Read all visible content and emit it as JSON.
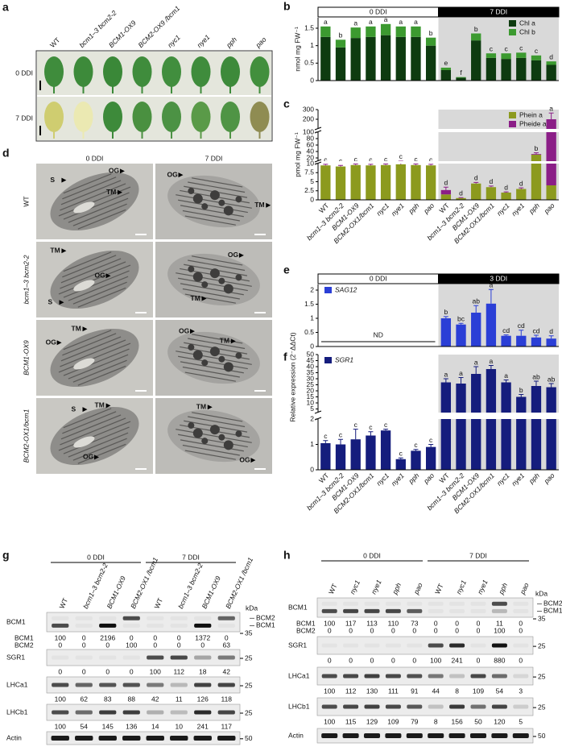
{
  "panel_labels": [
    "a",
    "b",
    "c",
    "d",
    "e",
    "f",
    "g",
    "h"
  ],
  "leaves": {
    "genotypes": [
      "WT",
      "bcm1–3 bcm2-2",
      "BCM1-OX9",
      "BCM2-OX9 /bcm1",
      "nyc1",
      "nye1",
      "pph",
      "pao"
    ],
    "rows": [
      "0 DDI",
      "7 DDI"
    ]
  },
  "micrographs": {
    "columns": [
      "0 DDI",
      "7 DDI"
    ],
    "rows": [
      "WT",
      "bcm1–3 bcm2-2",
      "BCM1-OX9",
      "BCM2-OX1/bcm1"
    ],
    "annotations": [
      [
        [
          "OG",
          "S",
          "TM"
        ],
        [
          "OG",
          "TM"
        ]
      ],
      [
        [
          "TM",
          "OG",
          "S"
        ],
        [
          "OG",
          "TM"
        ]
      ],
      [
        [
          "OG",
          "TM"
        ],
        [
          "OG",
          "TM"
        ]
      ],
      [
        [
          "S",
          "TM",
          "OG"
        ],
        [
          "TM",
          "OG"
        ]
      ]
    ]
  },
  "chart_data": [
    {
      "type": "stacked_bar",
      "periods": [
        "0 DDI",
        "7 DDI"
      ],
      "ylabel": "nmol mg FW⁻¹",
      "ylim": [
        0,
        1.8
      ],
      "yticks": [
        0,
        0.5,
        1,
        1.5
      ],
      "legend": "upper right",
      "series": [
        {
          "name": "Chl a",
          "color": "#0e3b10",
          "values": [
            1.25,
            0.95,
            1.22,
            1.25,
            1.3,
            1.25,
            1.25,
            1.0,
            0.3,
            0.08,
            1.15,
            0.65,
            0.62,
            0.65,
            0.58,
            0.45
          ]
        },
        {
          "name": "Chl b",
          "color": "#3c9a30",
          "values": [
            0.3,
            0.22,
            0.3,
            0.3,
            0.32,
            0.3,
            0.3,
            0.23,
            0.07,
            0.02,
            0.2,
            0.13,
            0.16,
            0.15,
            0.14,
            0.1
          ]
        }
      ],
      "letters": [
        "a",
        "b",
        "a",
        "a",
        "a",
        "a",
        "a",
        "b",
        "e",
        "f",
        "b",
        "c",
        "c",
        "c",
        "c",
        "d"
      ]
    },
    {
      "type": "stacked_bar",
      "ylabel": "pmol mg FW⁻¹",
      "ylim": [
        0,
        300
      ],
      "ysegments": [
        [
          0,
          10
        ],
        [
          10,
          100
        ],
        [
          100,
          300
        ]
      ],
      "yticks": [
        0,
        2.5,
        5,
        7.5,
        10,
        20,
        40,
        60,
        80,
        100,
        200,
        300
      ],
      "legend": "upper right",
      "categories": [
        "WT",
        "bcm1–3 bcm2-2",
        "BCM1-OX9",
        "BCM2-OX1/bcm1",
        "nyc1",
        "nye1",
        "pph",
        "pao",
        "WT",
        "bcm1–3 bcm2-2",
        "BCM1-OX9",
        "BCM2-OX1/bcm1",
        "nyc1",
        "nye1",
        "pph",
        "pao"
      ],
      "series": [
        {
          "name": "Phein a",
          "color": "#8c9a1e",
          "values": [
            9.5,
            9.2,
            9.6,
            9.5,
            9.6,
            9.8,
            9.6,
            9.5,
            1.5,
            0.5,
            4.5,
            3.5,
            2.0,
            3.0,
            30,
            4
          ]
        },
        {
          "name": "Pheide a",
          "color": "#8b1e87",
          "values": [
            0,
            0,
            0,
            0,
            0,
            0,
            0,
            0,
            1.2,
            0,
            0,
            0,
            0,
            0,
            2,
            196
          ]
        }
      ],
      "errors": [
        0.3,
        0.3,
        0.3,
        0.3,
        0.3,
        0.3,
        0.3,
        0.3,
        0.8,
        0.1,
        0.3,
        0.3,
        0.2,
        0.3,
        4,
        65
      ],
      "letters": [
        "c",
        "c",
        "c",
        "c",
        "c",
        "c",
        "c",
        "c",
        "d",
        "d",
        "d",
        "d",
        "d",
        "d",
        "b",
        "a"
      ]
    },
    {
      "type": "bar",
      "periods": [
        "0 DDI",
        "3 DDI"
      ],
      "ylabel": "Relative expression (2⁻ΔΔCt)",
      "annotation": "ND",
      "ylim": [
        0,
        2.2
      ],
      "yticks": [
        0,
        0.5,
        1,
        1.5,
        2
      ],
      "legend": "upper left",
      "series": [
        {
          "name": "SAG12",
          "color": "#2b3fd6",
          "values": [
            null,
            null,
            null,
            null,
            null,
            null,
            null,
            null,
            1.0,
            0.78,
            1.2,
            1.52,
            0.38,
            0.38,
            0.32,
            0.28
          ]
        }
      ],
      "errors": [
        null,
        null,
        null,
        null,
        null,
        null,
        null,
        null,
        0.06,
        0.04,
        0.25,
        0.5,
        0.03,
        0.2,
        0.08,
        0.1
      ],
      "letters": [
        null,
        null,
        null,
        null,
        null,
        null,
        null,
        null,
        "b",
        "bc",
        "ab",
        "a",
        "cd",
        "cd",
        "cd",
        "d"
      ]
    },
    {
      "type": "bar",
      "ylim": [
        0,
        50
      ],
      "ysegments": [
        [
          0,
          2
        ],
        [
          2,
          50
        ]
      ],
      "yticks": [
        0,
        1,
        2,
        5,
        10,
        15,
        20,
        25,
        30,
        35,
        40,
        45,
        50
      ],
      "legend": "upper left",
      "categories": [
        "WT",
        "bcm1–3 bcm2-2",
        "BCM1-OX9",
        "BCM2-OX1/bcm1",
        "nyc1",
        "nye1",
        "pph",
        "pao",
        "WT",
        "bcm1–3 bcm2-2",
        "BCM1-OX9",
        "BCM2-OX1/bcm1",
        "nyc1",
        "nye1",
        "pph",
        "pao"
      ],
      "series": [
        {
          "name": "SGR1",
          "color": "#151d7d",
          "values": [
            1.05,
            1.0,
            1.2,
            1.35,
            1.55,
            0.42,
            0.75,
            0.9,
            27,
            26,
            34,
            38,
            27,
            15,
            24,
            23
          ]
        }
      ],
      "errors": [
        0.1,
        0.2,
        0.4,
        0.15,
        0.05,
        0.05,
        0.05,
        0.1,
        3,
        5,
        6,
        3,
        2,
        2,
        4,
        3
      ],
      "letters": [
        "c",
        "c",
        "c",
        "c",
        "c",
        "c",
        "c",
        "c",
        "a",
        "a",
        "a",
        "a",
        "a",
        "b",
        "ab",
        "ab"
      ]
    }
  ],
  "blots": [
    {
      "header": [
        "0 DDI",
        "7 DDI"
      ],
      "kda_label": "kDa",
      "lanes": [
        "WT",
        "bcm1–3 bcm2-2",
        "BCM1-OX9",
        "BCM2-OX1 /bcm1",
        "WT",
        "bcm1–3 bcm2-2",
        "BCM1-OX9",
        "BCM2-OX1 /bcm1"
      ],
      "rows": [
        {
          "name": "BCM1",
          "bands": [
            "BCM2",
            "BCM1"
          ],
          "kda": [
            35
          ],
          "quant": [
            {
              "name": "BCM1",
              "values": [
                100,
                0,
                2196,
                0,
                0,
                0,
                1372,
                0
              ]
            },
            {
              "name": "BCM2",
              "values": [
                0,
                0,
                0,
                100,
                0,
                0,
                0,
                63
              ]
            }
          ]
        },
        {
          "name": "SGR1",
          "kda": [
            25
          ],
          "quant": [
            {
              "values": [
                0,
                0,
                0,
                0,
                100,
                112,
                18,
                42
              ]
            }
          ]
        },
        {
          "name": "LHCa1",
          "kda": [
            25
          ],
          "quant": [
            {
              "values": [
                100,
                62,
                83,
                88,
                42,
                11,
                126,
                118
              ]
            }
          ]
        },
        {
          "name": "LHCb1",
          "kda": [
            25
          ],
          "quant": [
            {
              "values": [
                100,
                54,
                145,
                136,
                14,
                10,
                241,
                117
              ]
            }
          ]
        },
        {
          "name": "Actin",
          "kda": [
            50
          ]
        }
      ]
    },
    {
      "header": [
        "0 DDI",
        "7 DDI"
      ],
      "kda_label": "kDa",
      "lanes": [
        "WT",
        "nyc1",
        "nye1",
        "pph",
        "pao",
        "WT",
        "nyc1",
        "nye1",
        "pph",
        "pao"
      ],
      "rows": [
        {
          "name": "BCM1",
          "bands": [
            "BCM2",
            "BCM1"
          ],
          "kda": [
            35
          ],
          "quant": [
            {
              "name": "BCM1",
              "values": [
                100,
                117,
                113,
                110,
                73,
                0,
                0,
                0,
                11,
                0
              ]
            },
            {
              "name": "BCM2",
              "values": [
                0,
                0,
                0,
                0,
                0,
                0,
                0,
                0,
                100,
                0
              ]
            }
          ]
        },
        {
          "name": "SGR1",
          "kda": [
            25
          ],
          "quant": [
            {
              "values": [
                0,
                0,
                0,
                0,
                0,
                100,
                241,
                0,
                880,
                0
              ]
            }
          ]
        },
        {
          "name": "LHCa1",
          "kda": [
            25
          ],
          "quant": [
            {
              "values": [
                100,
                112,
                130,
                111,
                91,
                44,
                8,
                109,
                54,
                3
              ]
            }
          ]
        },
        {
          "name": "LHCb1",
          "kda": [
            25
          ],
          "quant": [
            {
              "values": [
                100,
                115,
                129,
                109,
                79,
                8,
                156,
                50,
                120,
                5
              ]
            }
          ]
        },
        {
          "name": "Actin",
          "kda": [
            50
          ]
        }
      ]
    }
  ]
}
